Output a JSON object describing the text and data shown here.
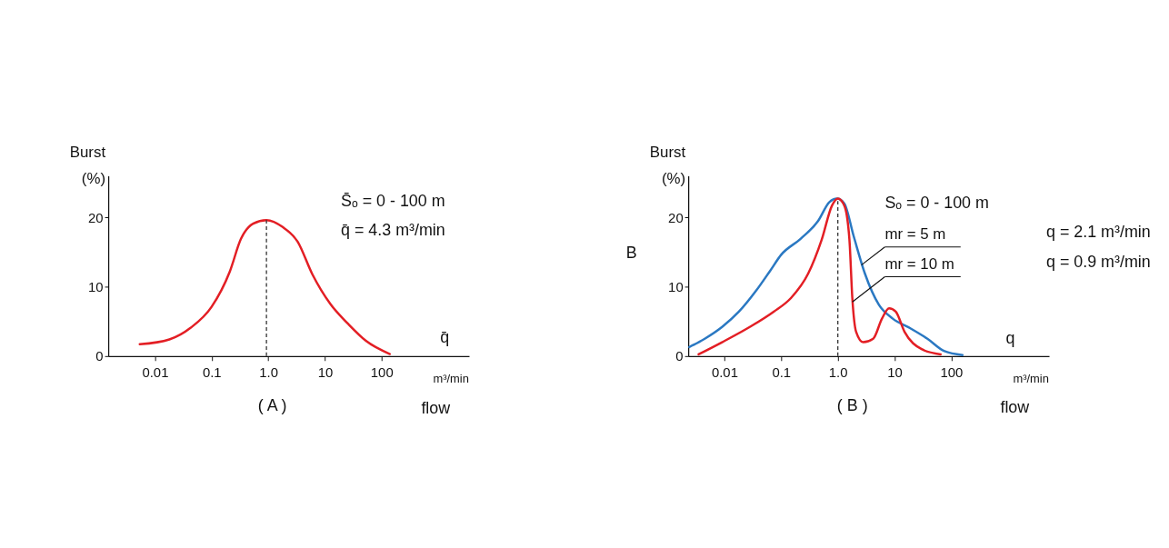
{
  "chart_data": [
    {
      "type": "line",
      "title": "( A )",
      "xlabel": "m³/min",
      "ylabel": "Burst (%)",
      "log": "x",
      "xlim": [
        0.0015,
        3500
      ],
      "xticks": [
        0.01,
        0.1,
        {
          "value": 1,
          "label": "1.0"
        },
        10,
        100
      ],
      "ylim": [
        0,
        26
      ],
      "yticks": [
        0,
        10,
        20
      ],
      "grid": false,
      "legend": false,
      "marker": "none",
      "line_style": "solid",
      "series": [
        {
          "color": "#e31e24",
          "x": [
            0.0054,
            0.018,
            0.043,
            0.1,
            0.21,
            0.33,
            0.54,
            0.93,
            1.8,
            3.3,
            6.0,
            12.5,
            26,
            53,
            140
          ],
          "values": [
            1.7,
            2.4,
            4.1,
            7.1,
            12.2,
            16.9,
            19.1,
            19.6,
            18.6,
            16.5,
            11.8,
            7.5,
            4.6,
            2.2,
            0.3
          ]
        }
      ],
      "ref_lines": [
        {
          "axis": "x",
          "value": 0.93,
          "line_style": "dashed",
          "color": "#333333"
        }
      ],
      "annotations": [
        "S̄ₒ = 0 - 100 m",
        "q̄ = 4.3 m³/min",
        "q̄",
        "flow"
      ]
    },
    {
      "type": "line",
      "title": "( B )",
      "xlabel": "m³/min",
      "ylabel": "Burst (%)",
      "log": "x",
      "xlim": [
        0.0023,
        5300
      ],
      "xticks": [
        0.01,
        0.1,
        {
          "value": 1,
          "label": "1.0"
        },
        10,
        100
      ],
      "ylim": [
        0,
        26
      ],
      "yticks": [
        0,
        10,
        20
      ],
      "grid": false,
      "legend": false,
      "marker": "none",
      "line_style": "solid",
      "series": [
        {
          "name": "mr = 5 m",
          "color": "#2a78c2",
          "x": [
            0.0024,
            0.0045,
            0.0091,
            0.018,
            0.036,
            0.064,
            0.1,
            0.22,
            0.45,
            0.71,
            0.97,
            1.3,
            1.9,
            3.0,
            5.3,
            9.3,
            19,
            38,
            76,
            158
          ],
          "values": [
            1.3,
            2.5,
            4.2,
            6.4,
            9.4,
            12.3,
            14.6,
            16.9,
            19.5,
            22.2,
            22.7,
            22.0,
            17.3,
            11.9,
            7.4,
            5.4,
            4.0,
            2.5,
            0.7,
            0.15
          ]
        },
        {
          "name": "mr = 10 m",
          "color": "#e31e24",
          "x": [
            0.0035,
            0.0091,
            0.028,
            0.074,
            0.15,
            0.3,
            0.52,
            0.79,
            1.0,
            1.3,
            1.6,
            1.8,
            2.1,
            2.8,
            4.2,
            6.0,
            8.0,
            10.5,
            15,
            30,
            65
          ],
          "values": [
            0.25,
            2.0,
            4.2,
            6.4,
            8.4,
            11.9,
            16.8,
            21.7,
            22.7,
            21.7,
            16.8,
            8.4,
            3.5,
            2.0,
            2.5,
            5.4,
            6.9,
            6.4,
            3.5,
            1.0,
            0.25
          ]
        }
      ],
      "ref_lines": [
        {
          "axis": "x",
          "value": 1.0,
          "line_style": "dashed",
          "color": "#333333"
        }
      ],
      "annotations": [
        "Sₒ = 0 - 100 m",
        "q = 2.1 m³/min",
        "q = 0.9 m³/min",
        "B",
        "q",
        "flow"
      ]
    }
  ]
}
